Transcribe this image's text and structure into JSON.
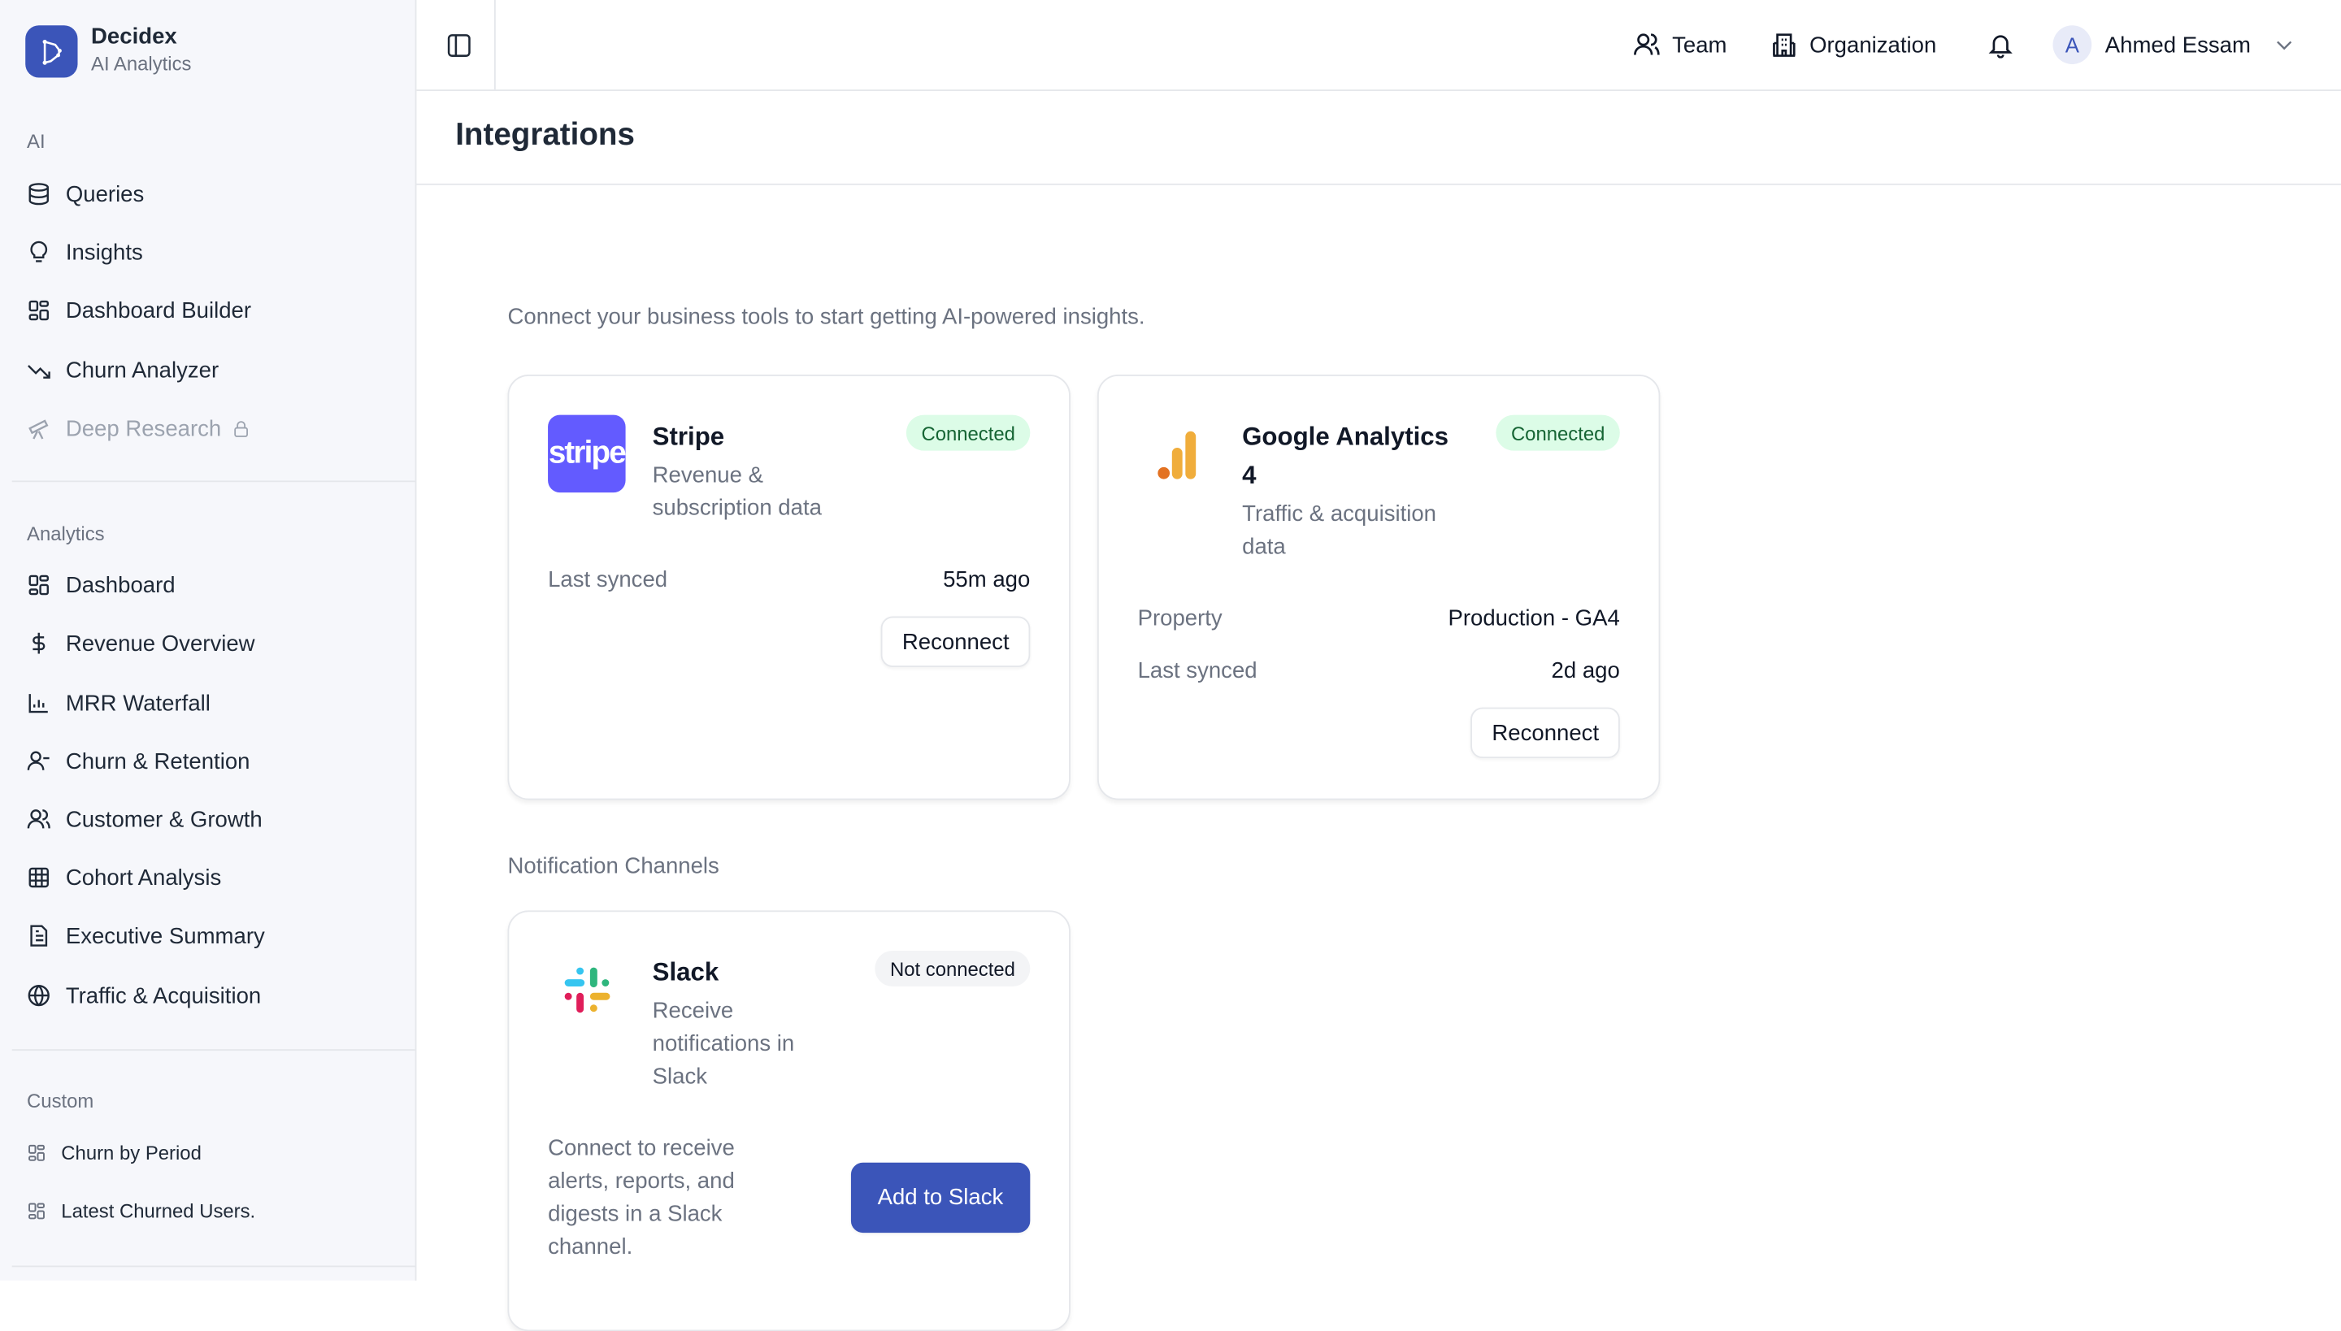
{
  "brand": {
    "name": "Decidex",
    "subtitle": "AI Analytics",
    "accent": "#3b55b9"
  },
  "sidebar": {
    "sections": [
      {
        "label": "AI",
        "items": [
          {
            "label": "Queries",
            "icon": "database-icon"
          },
          {
            "label": "Insights",
            "icon": "lightbulb-icon"
          },
          {
            "label": "Dashboard Builder",
            "icon": "layout-grid-icon"
          },
          {
            "label": "Churn Analyzer",
            "icon": "trending-down-icon"
          },
          {
            "label": "Deep Research",
            "icon": "telescope-icon",
            "locked": true
          }
        ]
      },
      {
        "label": "Analytics",
        "items": [
          {
            "label": "Dashboard",
            "icon": "layout-grid-icon"
          },
          {
            "label": "Revenue Overview",
            "icon": "dollar-icon"
          },
          {
            "label": "MRR Waterfall",
            "icon": "bar-chart-icon"
          },
          {
            "label": "Churn & Retention",
            "icon": "user-minus-icon"
          },
          {
            "label": "Customer & Growth",
            "icon": "users-icon"
          },
          {
            "label": "Cohort Analysis",
            "icon": "grid-icon"
          },
          {
            "label": "Executive Summary",
            "icon": "file-text-icon"
          },
          {
            "label": "Traffic & Acquisition",
            "icon": "globe-icon"
          }
        ]
      },
      {
        "label": "Custom",
        "items": [
          {
            "label": "Churn by Period",
            "icon": "layout-grid-icon"
          },
          {
            "label": "Latest Churned Users.",
            "icon": "layout-grid-icon"
          }
        ]
      }
    ]
  },
  "header": {
    "team": "Team",
    "organization": "Organization",
    "user": {
      "initial": "A",
      "name": "Ahmed Essam"
    }
  },
  "page": {
    "title": "Integrations",
    "lead": "Connect your business tools to start getting AI-powered insights.",
    "notification_heading": "Notification Channels"
  },
  "integrations": [
    {
      "name": "Stripe",
      "desc": "Revenue & subscription data",
      "status": "Connected",
      "rows": [
        {
          "k": "Last synced",
          "v": "55m ago"
        }
      ],
      "action": "Reconnect",
      "logo_text": "stripe",
      "logo_color": "#635bff"
    },
    {
      "name": "Google Analytics 4",
      "desc": "Traffic & acquisition data",
      "status": "Connected",
      "rows": [
        {
          "k": "Property",
          "v": "Production - GA4"
        },
        {
          "k": "Last synced",
          "v": "2d ago"
        }
      ],
      "action": "Reconnect"
    }
  ],
  "channels": [
    {
      "name": "Slack",
      "desc": "Receive notifications in Slack",
      "status": "Not connected",
      "body": "Connect to receive alerts, reports, and digests in a Slack channel.",
      "action": "Add to Slack"
    }
  ]
}
